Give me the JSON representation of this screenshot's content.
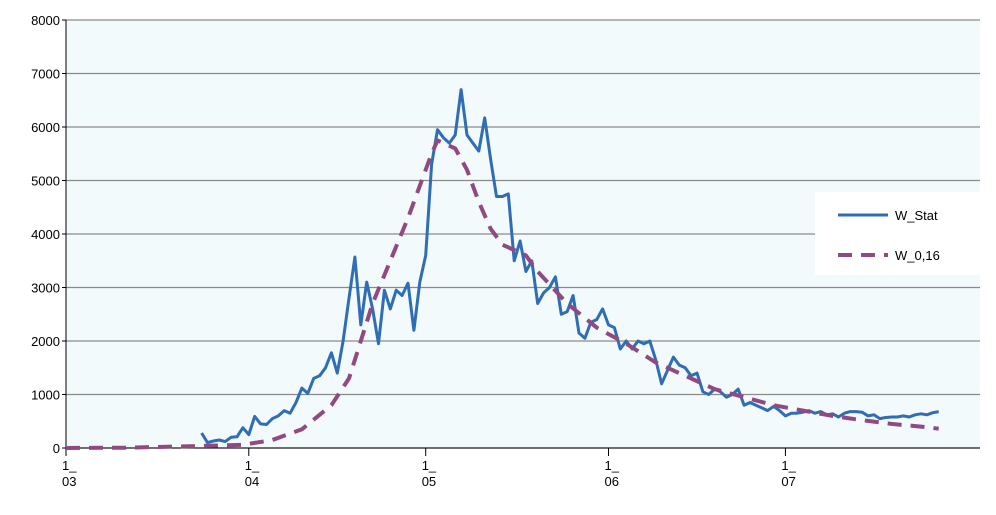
{
  "chart_data": {
    "type": "line",
    "xlim": [
      0,
      155
    ],
    "xticks": [
      {
        "value": 0,
        "label": [
          "1_",
          "03"
        ]
      },
      {
        "value": 31,
        "label": [
          "1_",
          "04"
        ]
      },
      {
        "value": 61,
        "label": [
          "1_",
          "05"
        ]
      },
      {
        "value": 92,
        "label": [
          "1_",
          "06"
        ]
      },
      {
        "value": 122,
        "label": [
          "1_",
          "07"
        ]
      }
    ],
    "ylim": [
      0,
      8000
    ],
    "yticks": [
      0,
      1000,
      2000,
      3000,
      4000,
      5000,
      6000,
      7000,
      8000
    ],
    "grid": true,
    "legend": "right",
    "series": [
      {
        "name": "W_Stat",
        "color": "#2f6db5",
        "dash": false,
        "x": [
          23,
          24,
          25,
          26,
          27,
          28,
          29,
          30,
          31,
          32,
          33,
          34,
          35,
          36,
          37,
          38,
          39,
          40,
          41,
          42,
          43,
          44,
          45,
          46,
          47,
          48,
          49,
          50,
          51,
          52,
          53,
          54,
          55,
          56,
          57,
          58,
          59,
          60,
          61,
          62,
          63,
          64,
          65,
          66,
          67,
          68,
          69,
          70,
          71,
          72,
          73,
          74,
          75,
          76,
          77,
          78,
          79,
          80,
          81,
          82,
          83,
          84,
          85,
          86,
          87,
          88,
          89,
          90,
          91,
          92,
          93,
          94,
          95,
          96,
          97,
          98,
          99,
          100,
          101,
          102,
          103,
          104,
          105,
          106,
          107,
          108,
          109,
          110,
          111,
          112,
          113,
          114,
          115,
          116,
          117,
          118,
          119,
          120,
          121,
          122,
          123,
          124,
          125,
          126,
          127,
          128,
          129,
          130,
          131,
          132,
          133,
          134,
          135,
          136,
          137,
          138,
          139,
          140,
          141,
          142,
          143,
          144,
          145,
          146,
          147,
          148
        ],
        "values": [
          280,
          100,
          130,
          150,
          120,
          200,
          210,
          380,
          250,
          590,
          450,
          440,
          550,
          600,
          700,
          650,
          850,
          1120,
          1020,
          1300,
          1350,
          1500,
          1780,
          1400,
          2000,
          2800,
          3570,
          2300,
          3100,
          2600,
          1950,
          2950,
          2600,
          2950,
          2850,
          3080,
          2200,
          3100,
          3600,
          5300,
          5950,
          5800,
          5700,
          5850,
          6700,
          5850,
          5700,
          5550,
          6170,
          5400,
          4700,
          4700,
          4750,
          3500,
          3870,
          3300,
          3500,
          2700,
          2900,
          3000,
          3200,
          2500,
          2550,
          2850,
          2150,
          2050,
          2350,
          2400,
          2600,
          2300,
          2250,
          1850,
          2000,
          1850,
          2000,
          1950,
          2000,
          1650,
          1200,
          1450,
          1700,
          1550,
          1500,
          1350,
          1400,
          1050,
          1000,
          1100,
          1050,
          950,
          1000,
          1100,
          800,
          850,
          800,
          750,
          700,
          780,
          700,
          600,
          650,
          650,
          670,
          700,
          650,
          680,
          620,
          640,
          580,
          650,
          680,
          680,
          670,
          600,
          620,
          550,
          570,
          580,
          580,
          600,
          580,
          620,
          640,
          620,
          660,
          680
        ]
      },
      {
        "name": "W_0,16",
        "color": "#914a80",
        "dash": true,
        "x": [
          0,
          10,
          20,
          30,
          35,
          40,
          45,
          48,
          50,
          52,
          55,
          58,
          60,
          62,
          63,
          66,
          68,
          70,
          72,
          74,
          78,
          80,
          85,
          90,
          95,
          100,
          105,
          110,
          115,
          120,
          125,
          130,
          135,
          140,
          145,
          148
        ],
        "values": [
          0,
          5,
          30,
          60,
          150,
          350,
          800,
          1300,
          2000,
          2700,
          3500,
          4300,
          4900,
          5500,
          5750,
          5600,
          5200,
          4600,
          4100,
          3800,
          3600,
          3300,
          2700,
          2250,
          1950,
          1600,
          1350,
          1100,
          950,
          800,
          700,
          600,
          520,
          450,
          400,
          360
        ]
      }
    ]
  }
}
